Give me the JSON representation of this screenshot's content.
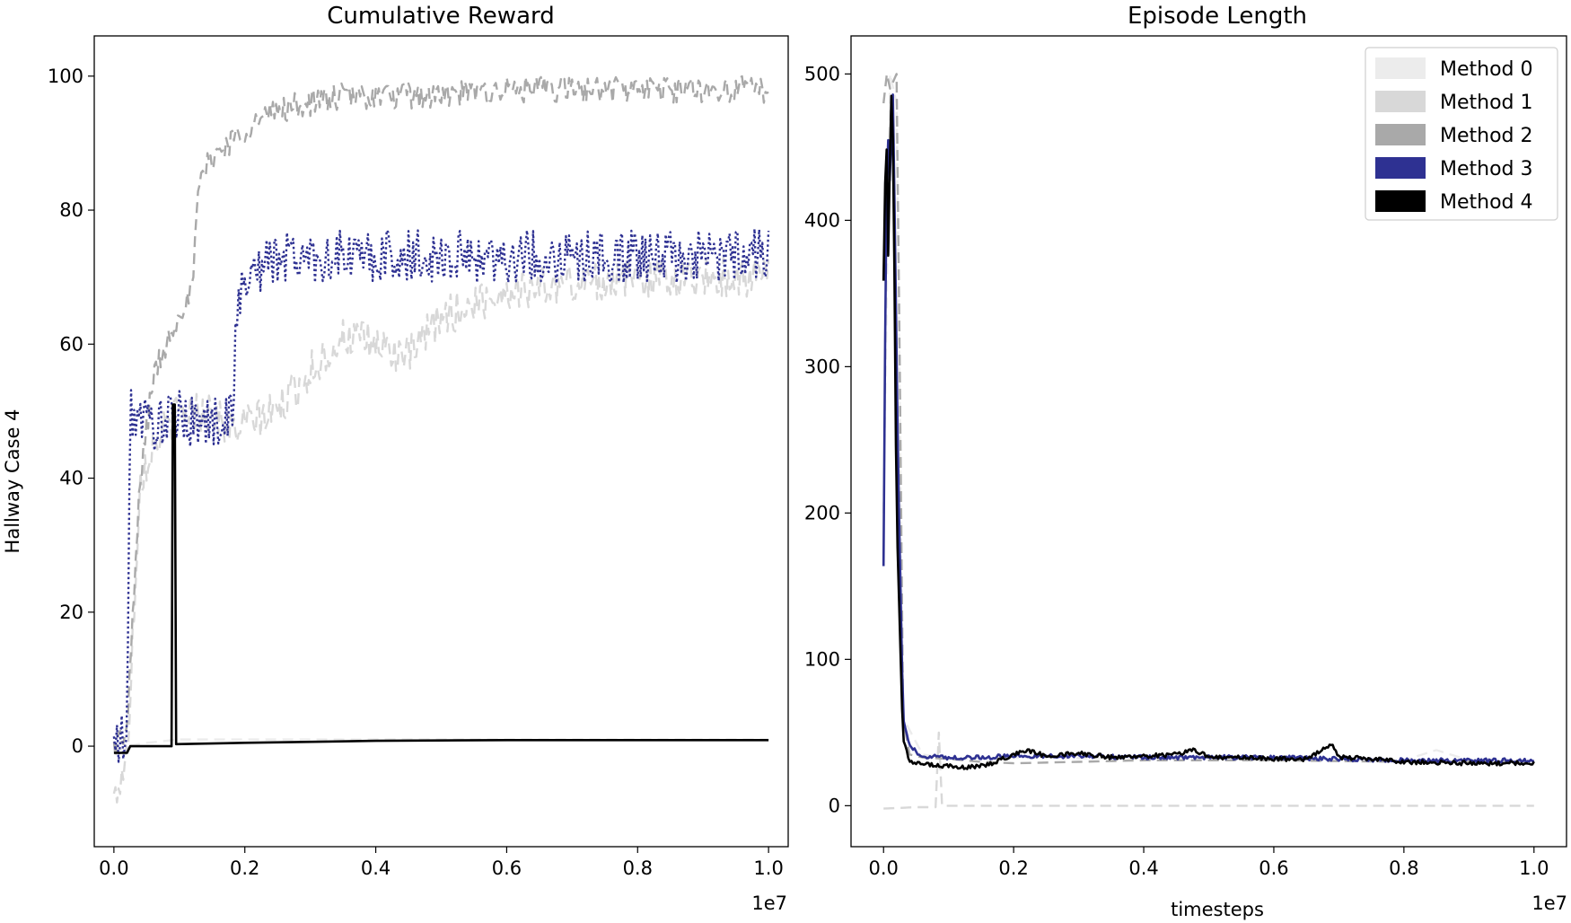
{
  "chart_data": [
    {
      "type": "line",
      "title": "Cumulative Reward",
      "xlabel": "",
      "ylabel": "Hallway Case 4",
      "x_offset_label": "1e7",
      "xlim": [
        -0.03,
        1.03
      ],
      "ylim": [
        -15,
        106
      ],
      "xticks": [
        0.0,
        0.2,
        0.4,
        0.6,
        0.8,
        1.0
      ],
      "xtick_labels": [
        "0.0",
        "0.2",
        "0.4",
        "0.6",
        "0.8",
        "1.0"
      ],
      "yticks": [
        0,
        20,
        40,
        60,
        80,
        100
      ],
      "ytick_labels": [
        "0",
        "20",
        "40",
        "60",
        "80",
        "100"
      ],
      "series": [
        {
          "color": "#ececec",
          "dash": "dashed",
          "x": [
            0.0,
            0.02,
            0.05,
            0.1,
            0.2,
            0.4,
            0.6,
            0.8,
            1.0
          ],
          "y": [
            -1,
            0,
            0.5,
            1,
            1,
            1,
            1,
            1,
            1
          ]
        },
        {
          "color": "#d8d8d8",
          "dash": "dashed",
          "noise": 3,
          "x": [
            0.0,
            0.02,
            0.04,
            0.06,
            0.1,
            0.15,
            0.18,
            0.2,
            0.25,
            0.3,
            0.35,
            0.4,
            0.45,
            0.5,
            0.55,
            0.6,
            0.7,
            0.8,
            0.9,
            1.0
          ],
          "y": [
            -8,
            -2,
            40,
            45,
            50,
            50,
            47,
            48,
            50,
            56,
            61,
            60,
            58,
            64,
            66,
            68,
            69,
            70,
            70,
            70
          ]
        },
        {
          "color": "#a9a9a9",
          "dash": "dashed",
          "noise": 2,
          "x": [
            0.0,
            0.02,
            0.04,
            0.06,
            0.08,
            0.1,
            0.12,
            0.13,
            0.15,
            0.2,
            0.25,
            0.3,
            0.35,
            0.4,
            0.5,
            0.6,
            0.8,
            1.0
          ],
          "y": [
            0,
            2,
            40,
            55,
            60,
            65,
            68,
            84,
            88,
            92,
            95,
            96,
            97,
            97,
            97,
            98,
            98,
            98
          ]
        },
        {
          "color": "#2e3192",
          "dash": "dotted",
          "noise": 4,
          "x": [
            0.0,
            0.02,
            0.025,
            0.04,
            0.06,
            0.1,
            0.15,
            0.18,
            0.19,
            0.2,
            0.25,
            0.3,
            0.4,
            0.5,
            0.6,
            0.7,
            0.8,
            0.9,
            1.0
          ],
          "y": [
            0,
            1,
            50,
            49,
            48,
            49,
            48,
            50,
            66,
            70,
            73,
            73,
            73,
            73,
            73,
            73,
            73,
            73,
            74
          ]
        },
        {
          "color": "#000000",
          "dash": "solid",
          "x": [
            0.0,
            0.02,
            0.025,
            0.08,
            0.088,
            0.09,
            0.093,
            0.095,
            0.2,
            0.4,
            0.6,
            0.8,
            1.0
          ],
          "y": [
            -1,
            -1,
            0,
            0,
            0,
            51,
            51,
            0.3,
            0.5,
            0.8,
            0.9,
            0.9,
            0.9
          ]
        }
      ]
    },
    {
      "type": "line",
      "title": "Episode Length",
      "xlabel": "timesteps",
      "ylabel": "",
      "x_offset_label": "1e7",
      "xlim": [
        -0.05,
        1.05
      ],
      "ylim": [
        -28,
        526
      ],
      "xticks": [
        0.0,
        0.2,
        0.4,
        0.6,
        0.8,
        1.0
      ],
      "xtick_labels": [
        "0.0",
        "0.2",
        "0.4",
        "0.6",
        "0.8",
        "1.0"
      ],
      "yticks": [
        0,
        100,
        200,
        300,
        400,
        500
      ],
      "ytick_labels": [
        "0",
        "100",
        "200",
        "300",
        "400",
        "500"
      ],
      "legend": {
        "location": "upper right",
        "entries": [
          "Method 0",
          "Method 1",
          "Method 2",
          "Method 3",
          "Method 4"
        ],
        "colors": [
          "#ececec",
          "#d8d8d8",
          "#a9a9a9",
          "#2e3192",
          "#000000"
        ]
      },
      "series": [
        {
          "color": "#ececec",
          "dash": "dashed",
          "x": [
            0.0,
            0.01,
            0.02,
            0.03,
            0.06,
            0.1,
            0.2,
            0.4,
            0.6,
            0.8,
            0.85,
            0.9,
            1.0
          ],
          "y": [
            200,
            500,
            480,
            60,
            35,
            32,
            33,
            32,
            32,
            31,
            38,
            31,
            30
          ]
        },
        {
          "color": "#d8d8d8",
          "dash": "dashed",
          "x": [
            0.0,
            0.05,
            0.08,
            0.085,
            0.09,
            0.1,
            0.2,
            0.4,
            0.6,
            0.8,
            1.0
          ],
          "y": [
            -2,
            -1,
            -1,
            50,
            0,
            0,
            0,
            0,
            0,
            0,
            0
          ]
        },
        {
          "color": "#a9a9a9",
          "dash": "dashed",
          "x": [
            0.0,
            0.005,
            0.01,
            0.02,
            0.025,
            0.03,
            0.04,
            0.06,
            0.1,
            0.15,
            0.2,
            0.3,
            0.4,
            0.5,
            0.6,
            0.8,
            1.0
          ],
          "y": [
            480,
            500,
            490,
            500,
            300,
            60,
            35,
            33,
            32,
            30,
            29,
            30,
            31,
            31,
            31,
            30,
            30
          ]
        },
        {
          "color": "#2e3192",
          "dash": "solid",
          "noise": 1.5,
          "x": [
            0.0,
            0.003,
            0.006,
            0.01,
            0.014,
            0.018,
            0.022,
            0.03,
            0.04,
            0.06,
            0.1,
            0.15,
            0.2,
            0.3,
            0.4,
            0.5,
            0.6,
            0.7,
            0.8,
            0.9,
            1.0
          ],
          "y": [
            165,
            360,
            470,
            420,
            495,
            380,
            240,
            60,
            40,
            34,
            33,
            33,
            34,
            34,
            33,
            33,
            33,
            32,
            31,
            31,
            31
          ]
        },
        {
          "color": "#000000",
          "dash": "solid",
          "noise": 1.5,
          "x": [
            0.0,
            0.004,
            0.008,
            0.01,
            0.013,
            0.016,
            0.02,
            0.03,
            0.04,
            0.06,
            0.1,
            0.13,
            0.16,
            0.2,
            0.22,
            0.25,
            0.3,
            0.35,
            0.4,
            0.45,
            0.48,
            0.5,
            0.55,
            0.6,
            0.65,
            0.69,
            0.7,
            0.75,
            0.8,
            0.9,
            1.0
          ],
          "y": [
            360,
            470,
            350,
            460,
            500,
            400,
            200,
            45,
            30,
            28,
            27,
            26,
            28,
            35,
            38,
            34,
            36,
            33,
            34,
            35,
            38,
            33,
            33,
            32,
            32,
            42,
            33,
            32,
            30,
            29,
            29
          ]
        }
      ]
    }
  ]
}
